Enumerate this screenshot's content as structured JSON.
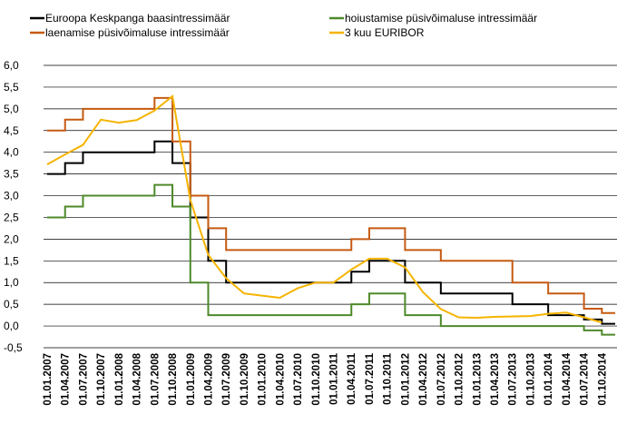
{
  "chart_data": {
    "type": "line",
    "categories": [
      "01.01.2007",
      "01.04.2007",
      "01.07.2007",
      "01.10.2007",
      "01.01.2008",
      "01.04.2008",
      "01.07.2008",
      "01.10.2008",
      "01.01.2009",
      "01.04.2009",
      "01.07.2009",
      "01.10.2009",
      "01.01.2010",
      "01.04.2010",
      "01.07.2010",
      "01.10.2010",
      "01.01.2011",
      "01.04.2011",
      "01.07.2011",
      "01.10.2011",
      "01.01.2012",
      "01.04.2012",
      "01.07.2012",
      "01.10.2012",
      "01.01.2013",
      "01.04.2013",
      "01.07.2013",
      "01.10.2013",
      "01.01.2014",
      "01.04.2014",
      "01.07.2014",
      "01.10.2014"
    ],
    "series": [
      {
        "name": "Euroopa Keskpanga baasintressimäär",
        "color": "#000000",
        "step": true,
        "values": [
          3.5,
          3.75,
          4.0,
          4.0,
          4.0,
          4.0,
          4.25,
          3.75,
          2.5,
          1.5,
          1.0,
          1.0,
          1.0,
          1.0,
          1.0,
          1.0,
          1.0,
          1.25,
          1.5,
          1.5,
          1.0,
          1.0,
          0.75,
          0.75,
          0.75,
          0.75,
          0.5,
          0.5,
          0.25,
          0.25,
          0.15,
          0.05
        ]
      },
      {
        "name": "hoiustamise püsivõimaluse intressimäär",
        "color": "#4e8a2a",
        "step": true,
        "values": [
          2.5,
          2.75,
          3.0,
          3.0,
          3.0,
          3.0,
          3.25,
          2.75,
          1.0,
          0.25,
          0.25,
          0.25,
          0.25,
          0.25,
          0.25,
          0.25,
          0.25,
          0.5,
          0.75,
          0.75,
          0.25,
          0.25,
          0,
          0,
          0,
          0,
          0,
          0,
          0,
          0,
          -0.1,
          -0.2
        ]
      },
      {
        "name": "laenamise püsivõimaluse intressimäär",
        "color": "#c55a11",
        "step": true,
        "values": [
          4.5,
          4.75,
          5.0,
          5.0,
          5.0,
          5.0,
          5.25,
          4.25,
          3.0,
          2.25,
          1.75,
          1.75,
          1.75,
          1.75,
          1.75,
          1.75,
          1.75,
          2.0,
          2.25,
          2.25,
          1.75,
          1.75,
          1.5,
          1.5,
          1.5,
          1.5,
          1.0,
          1.0,
          0.75,
          0.75,
          0.4,
          0.3
        ]
      },
      {
        "name": "3 kuu EURIBOR",
        "color": "#f5b400",
        "step": false,
        "values": [
          3.72,
          3.95,
          4.17,
          4.75,
          4.68,
          4.74,
          4.96,
          5.29,
          2.9,
          1.64,
          1.1,
          0.75,
          0.7,
          0.65,
          0.87,
          1.0,
          1.0,
          1.3,
          1.55,
          1.55,
          1.35,
          0.78,
          0.39,
          0.2,
          0.19,
          0.21,
          0.22,
          0.23,
          0.28,
          0.31,
          0.2,
          0.08
        ]
      }
    ],
    "ylim": [
      -0.5,
      6.0
    ],
    "yticks": [
      {
        "value": -0.5,
        "label": "-0,5"
      },
      {
        "value": 0,
        "label": "0,0"
      },
      {
        "value": 0.5,
        "label": "0,5"
      },
      {
        "value": 1,
        "label": "1,0"
      },
      {
        "value": 1.5,
        "label": "1,5"
      },
      {
        "value": 2,
        "label": "2,0"
      },
      {
        "value": 2.5,
        "label": "2,5"
      },
      {
        "value": 3,
        "label": "3,0"
      },
      {
        "value": 3.5,
        "label": "3,5"
      },
      {
        "value": 4,
        "label": "4,0"
      },
      {
        "value": 4.5,
        "label": "4,5"
      },
      {
        "value": 5,
        "label": "5,0"
      },
      {
        "value": 5.5,
        "label": "5,5"
      },
      {
        "value": 6,
        "label": "6,0"
      }
    ],
    "grid": true
  }
}
